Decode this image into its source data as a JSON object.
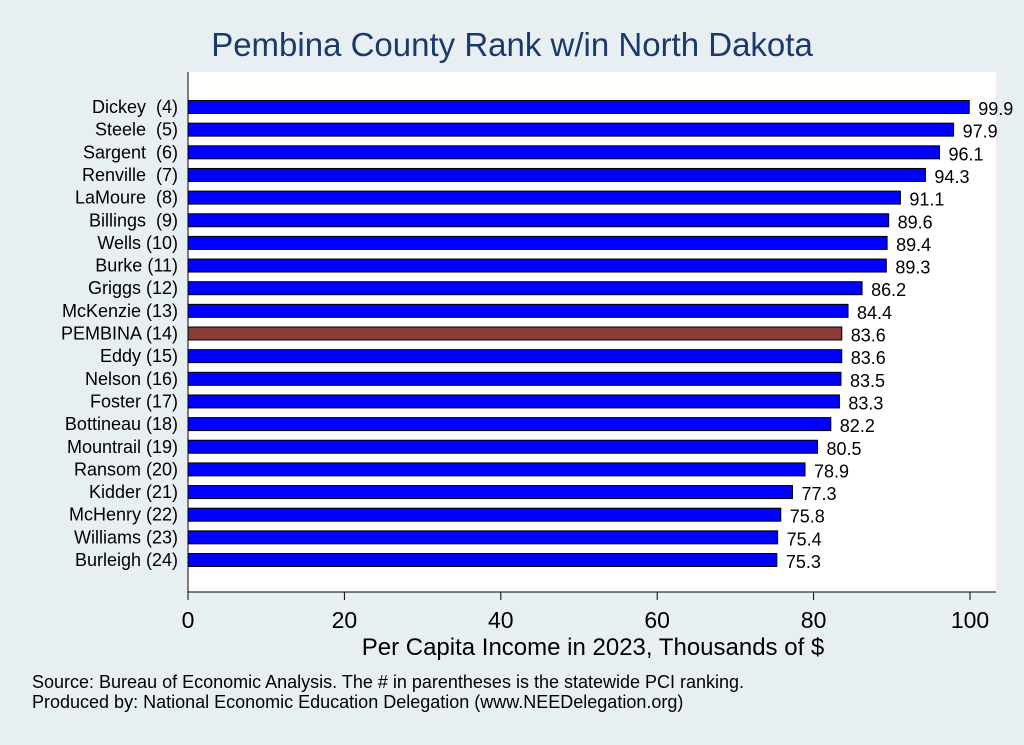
{
  "chart_data": {
    "type": "bar",
    "orientation": "horizontal",
    "title": "Pembina County Rank w/in North Dakota",
    "xlabel": "Per Capita Income in 2023, Thousands of $",
    "ylabel": "",
    "xlim": [
      0,
      100
    ],
    "xticks": [
      0,
      20,
      40,
      60,
      80,
      100
    ],
    "grid": false,
    "colors": {
      "bar": "#0000ff",
      "highlight": "#8b3a3a",
      "plot_bg": "#ffffff",
      "page_bg": "#e8eff3"
    },
    "categories": [
      "Dickey  (4)",
      "Steele  (5)",
      "Sargent  (6)",
      "Renville  (7)",
      "LaMoure  (8)",
      "Billings  (9)",
      "Wells (10)",
      "Burke (11)",
      "Griggs (12)",
      "McKenzie (13)",
      "PEMBINA (14)",
      "Eddy (15)",
      "Nelson (16)",
      "Foster (17)",
      "Bottineau (18)",
      "Mountrail (19)",
      "Ransom (20)",
      "Kidder (21)",
      "McHenry (22)",
      "Williams (23)",
      "Burleigh (24)"
    ],
    "values": [
      99.9,
      97.9,
      96.1,
      94.3,
      91.1,
      89.6,
      89.4,
      89.3,
      86.2,
      84.4,
      83.6,
      83.6,
      83.5,
      83.3,
      82.2,
      80.5,
      78.9,
      77.3,
      75.8,
      75.4,
      75.3
    ],
    "value_labels": [
      "99.9",
      "97.9",
      "96.1",
      "94.3",
      "91.1",
      "89.6",
      "89.4",
      "89.3",
      "86.2",
      "84.4",
      "83.6",
      "83.6",
      "83.5",
      "83.3",
      "82.2",
      "80.5",
      "78.9",
      "77.3",
      "75.8",
      "75.4",
      "75.3"
    ],
    "highlight_category": "PEMBINA (14)"
  },
  "footnotes": {
    "source": "Source: Bureau of Economic Analysis. The # in parentheses is the statewide PCI ranking.",
    "producer": "Produced by: National Economic Education Delegation (www.NEEDelegation.org)"
  }
}
